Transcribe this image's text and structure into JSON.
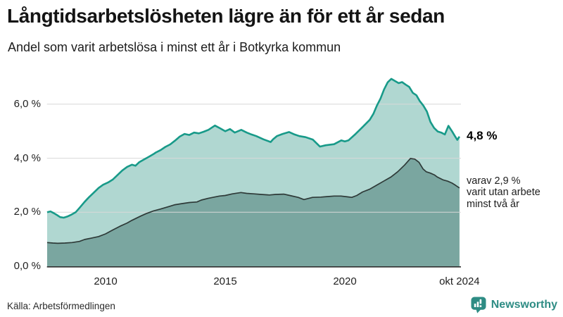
{
  "header": {
    "title": "Långtidsarbetslösheten lägre än för ett år sedan",
    "subtitle": "Andel som varit arbetslösa i minst ett år i Botkyrka kommun"
  },
  "chart_data": {
    "type": "area",
    "title": "Långtidsarbetslösheten lägre än för ett år sedan",
    "subtitle": "Andel som varit arbetslösa i minst ett år i Botkyrka kommun",
    "unit": "%",
    "region": "Botkyrka kommun",
    "xlim": [
      2007.55,
      2024.79
    ],
    "ylim": [
      0,
      7.6
    ],
    "grid": "horizontal",
    "legend_position": "none",
    "yticks": [
      {
        "value": 0,
        "label": "0,0 %"
      },
      {
        "value": 2,
        "label": "2,0 %"
      },
      {
        "value": 4,
        "label": "4,0 %"
      },
      {
        "value": 6,
        "label": "6,0 %"
      }
    ],
    "xticks": [
      {
        "value": 2010,
        "label": "2010"
      },
      {
        "value": 2015,
        "label": "2015"
      },
      {
        "value": 2020,
        "label": "2020"
      },
      {
        "value": 2024.79,
        "label": "okt 2024"
      }
    ],
    "series": [
      {
        "name": "Andel som varit arbetslösa i minst ett år",
        "line_color": "#189a89",
        "fill_color": "#b0d7d1",
        "line_width": 2.6,
        "latest_value": 4.8,
        "points": [
          [
            2007.56,
            2.0
          ],
          [
            2007.7,
            2.03
          ],
          [
            2007.85,
            1.96
          ],
          [
            2008.0,
            1.88
          ],
          [
            2008.1,
            1.82
          ],
          [
            2008.25,
            1.8
          ],
          [
            2008.4,
            1.84
          ],
          [
            2008.55,
            1.9
          ],
          [
            2008.75,
            2.0
          ],
          [
            2008.91,
            2.16
          ],
          [
            2009.12,
            2.38
          ],
          [
            2009.3,
            2.55
          ],
          [
            2009.5,
            2.72
          ],
          [
            2009.71,
            2.9
          ],
          [
            2009.9,
            3.02
          ],
          [
            2010.1,
            3.1
          ],
          [
            2010.3,
            3.21
          ],
          [
            2010.5,
            3.38
          ],
          [
            2010.7,
            3.55
          ],
          [
            2010.9,
            3.68
          ],
          [
            2011.1,
            3.76
          ],
          [
            2011.25,
            3.72
          ],
          [
            2011.4,
            3.85
          ],
          [
            2011.6,
            3.95
          ],
          [
            2011.8,
            4.05
          ],
          [
            2012.0,
            4.15
          ],
          [
            2012.1,
            4.21
          ],
          [
            2012.3,
            4.3
          ],
          [
            2012.5,
            4.42
          ],
          [
            2012.7,
            4.51
          ],
          [
            2012.9,
            4.65
          ],
          [
            2013.1,
            4.8
          ],
          [
            2013.3,
            4.9
          ],
          [
            2013.5,
            4.86
          ],
          [
            2013.7,
            4.95
          ],
          [
            2013.9,
            4.92
          ],
          [
            2014.1,
            4.98
          ],
          [
            2014.3,
            5.05
          ],
          [
            2014.57,
            5.21
          ],
          [
            2014.8,
            5.1
          ],
          [
            2015.0,
            5.0
          ],
          [
            2015.2,
            5.08
          ],
          [
            2015.4,
            4.95
          ],
          [
            2015.67,
            5.05
          ],
          [
            2015.9,
            4.95
          ],
          [
            2016.1,
            4.88
          ],
          [
            2016.3,
            4.82
          ],
          [
            2016.6,
            4.7
          ],
          [
            2016.9,
            4.6
          ],
          [
            2017.0,
            4.7
          ],
          [
            2017.16,
            4.82
          ],
          [
            2017.4,
            4.9
          ],
          [
            2017.67,
            4.97
          ],
          [
            2017.9,
            4.88
          ],
          [
            2018.1,
            4.82
          ],
          [
            2018.36,
            4.78
          ],
          [
            2018.66,
            4.69
          ],
          [
            2018.96,
            4.43
          ],
          [
            2019.2,
            4.48
          ],
          [
            2019.55,
            4.52
          ],
          [
            2019.85,
            4.66
          ],
          [
            2020.0,
            4.62
          ],
          [
            2020.15,
            4.66
          ],
          [
            2020.45,
            4.9
          ],
          [
            2020.75,
            5.16
          ],
          [
            2021.04,
            5.42
          ],
          [
            2021.19,
            5.64
          ],
          [
            2021.34,
            5.95
          ],
          [
            2021.49,
            6.21
          ],
          [
            2021.64,
            6.55
          ],
          [
            2021.79,
            6.81
          ],
          [
            2021.94,
            6.94
          ],
          [
            2022.09,
            6.86
          ],
          [
            2022.25,
            6.78
          ],
          [
            2022.39,
            6.82
          ],
          [
            2022.55,
            6.72
          ],
          [
            2022.69,
            6.64
          ],
          [
            2022.84,
            6.42
          ],
          [
            2022.99,
            6.33
          ],
          [
            2023.13,
            6.12
          ],
          [
            2023.28,
            5.95
          ],
          [
            2023.43,
            5.73
          ],
          [
            2023.58,
            5.34
          ],
          [
            2023.73,
            5.12
          ],
          [
            2023.88,
            4.99
          ],
          [
            2024.03,
            4.95
          ],
          [
            2024.18,
            4.88
          ],
          [
            2024.33,
            5.2
          ],
          [
            2024.48,
            5.0
          ],
          [
            2024.6,
            4.82
          ],
          [
            2024.7,
            4.68
          ],
          [
            2024.79,
            4.8
          ]
        ]
      },
      {
        "name": "varav varit utan arbete minst två år",
        "line_color": "#2e3a38",
        "fill_color": "#7aa6a0",
        "line_width": 1.7,
        "latest_value": 2.9,
        "points": [
          [
            2007.56,
            0.88
          ],
          [
            2007.8,
            0.86
          ],
          [
            2008.0,
            0.85
          ],
          [
            2008.3,
            0.86
          ],
          [
            2008.6,
            0.88
          ],
          [
            2008.91,
            0.92
          ],
          [
            2009.12,
            0.99
          ],
          [
            2009.4,
            1.04
          ],
          [
            2009.71,
            1.1
          ],
          [
            2010.0,
            1.2
          ],
          [
            2010.29,
            1.34
          ],
          [
            2010.6,
            1.48
          ],
          [
            2010.9,
            1.6
          ],
          [
            2011.1,
            1.7
          ],
          [
            2011.38,
            1.82
          ],
          [
            2011.47,
            1.86
          ],
          [
            2011.7,
            1.95
          ],
          [
            2012.0,
            2.05
          ],
          [
            2012.3,
            2.12
          ],
          [
            2012.65,
            2.21
          ],
          [
            2012.9,
            2.28
          ],
          [
            2013.2,
            2.32
          ],
          [
            2013.5,
            2.36
          ],
          [
            2013.82,
            2.38
          ],
          [
            2014.0,
            2.45
          ],
          [
            2014.3,
            2.52
          ],
          [
            2014.76,
            2.6
          ],
          [
            2015.0,
            2.62
          ],
          [
            2015.3,
            2.68
          ],
          [
            2015.66,
            2.73
          ],
          [
            2015.9,
            2.7
          ],
          [
            2016.2,
            2.68
          ],
          [
            2016.5,
            2.66
          ],
          [
            2016.85,
            2.64
          ],
          [
            2017.1,
            2.66
          ],
          [
            2017.45,
            2.67
          ],
          [
            2017.7,
            2.62
          ],
          [
            2018.05,
            2.55
          ],
          [
            2018.29,
            2.47
          ],
          [
            2018.65,
            2.55
          ],
          [
            2019.0,
            2.56
          ],
          [
            2019.24,
            2.58
          ],
          [
            2019.55,
            2.6
          ],
          [
            2019.84,
            2.6
          ],
          [
            2020.1,
            2.57
          ],
          [
            2020.29,
            2.55
          ],
          [
            2020.5,
            2.62
          ],
          [
            2020.74,
            2.75
          ],
          [
            2021.03,
            2.85
          ],
          [
            2021.33,
            3.0
          ],
          [
            2021.62,
            3.15
          ],
          [
            2021.92,
            3.3
          ],
          [
            2022.21,
            3.5
          ],
          [
            2022.5,
            3.75
          ],
          [
            2022.65,
            3.9
          ],
          [
            2022.74,
            3.99
          ],
          [
            2022.92,
            3.97
          ],
          [
            2023.1,
            3.85
          ],
          [
            2023.27,
            3.6
          ],
          [
            2023.4,
            3.5
          ],
          [
            2023.57,
            3.45
          ],
          [
            2023.75,
            3.38
          ],
          [
            2023.87,
            3.3
          ],
          [
            2024.1,
            3.2
          ],
          [
            2024.3,
            3.15
          ],
          [
            2024.48,
            3.08
          ],
          [
            2024.62,
            3.0
          ],
          [
            2024.79,
            2.9
          ]
        ]
      }
    ],
    "annotations": {
      "end_value_label": "4,8 %",
      "sub_lines": [
        "varav 2,9 %",
        "varit utan arbete",
        "minst två år"
      ]
    },
    "colors": {
      "gridline": "#d8d8d8",
      "axis": "#2f2f2f",
      "brand_teal": "#2e8c84"
    }
  },
  "footer": {
    "source": "Källa: Arbetsförmedlingen",
    "brand": "Newsworthy"
  }
}
